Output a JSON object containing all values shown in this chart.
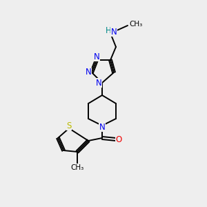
{
  "background_color": "#eeeeee",
  "atom_colors": {
    "C": "#000000",
    "N": "#0000ee",
    "O": "#ee0000",
    "S": "#bbbb00",
    "H": "#008888"
  },
  "figsize": [
    3.0,
    3.0
  ],
  "dpi": 100,
  "lw": 1.4,
  "fs": 8.5
}
